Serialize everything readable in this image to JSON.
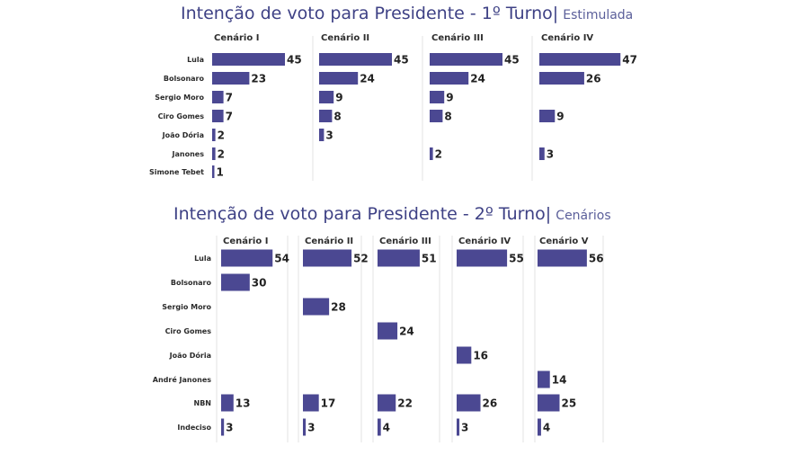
{
  "colors": {
    "bar": "#4b4892",
    "title": "#3e4185",
    "divider": "#e3e3e3"
  },
  "turno1": {
    "title": "Intenção de voto para Presidente - 1º Turno",
    "separator": "|",
    "subtitle": "Estimulada"
  },
  "turno2": {
    "title": "Intenção de voto para Presidente - 2º Turno",
    "separator": "|",
    "subtitle": "Cenários"
  },
  "chart_data": [
    {
      "type": "bar",
      "orientation": "horizontal",
      "title": "Intenção de voto para Presidente - 1º Turno | Estimulada",
      "categories": [
        "Lula",
        "Bolsonaro",
        "Sergio Moro",
        "Ciro Gomes",
        "João Dória",
        "Janones",
        "Simone Tebet"
      ],
      "series": [
        {
          "name": "Cenário I",
          "values": [
            45,
            23,
            7,
            7,
            2,
            2,
            1
          ]
        },
        {
          "name": "Cenário II",
          "values": [
            45,
            24,
            9,
            8,
            3,
            null,
            null
          ]
        },
        {
          "name": "Cenário III",
          "values": [
            45,
            24,
            9,
            8,
            null,
            2,
            null
          ]
        },
        {
          "name": "Cenário IV",
          "values": [
            47,
            26,
            null,
            9,
            null,
            3,
            null
          ]
        }
      ],
      "grid": false,
      "legend": "none"
    },
    {
      "type": "bar",
      "orientation": "horizontal",
      "title": "Intenção de voto para Presidente - 2º Turno | Cenários",
      "categories": [
        "Lula",
        "Bolsonaro",
        "Sergio Moro",
        "Ciro Gomes",
        "João Dória",
        "André Janones",
        "NBN",
        "Indeciso"
      ],
      "series": [
        {
          "name": "Cenário I",
          "values": [
            54,
            30,
            null,
            null,
            null,
            null,
            13,
            3
          ]
        },
        {
          "name": "Cenário II",
          "values": [
            52,
            null,
            28,
            null,
            null,
            null,
            17,
            3
          ]
        },
        {
          "name": "Cenário III",
          "values": [
            51,
            null,
            null,
            24,
            null,
            null,
            22,
            4
          ]
        },
        {
          "name": "Cenário IV",
          "values": [
            55,
            null,
            null,
            null,
            16,
            null,
            26,
            3
          ]
        },
        {
          "name": "Cenário V",
          "values": [
            56,
            null,
            null,
            null,
            null,
            14,
            25,
            4
          ]
        }
      ],
      "grid": false,
      "legend": "none"
    }
  ]
}
